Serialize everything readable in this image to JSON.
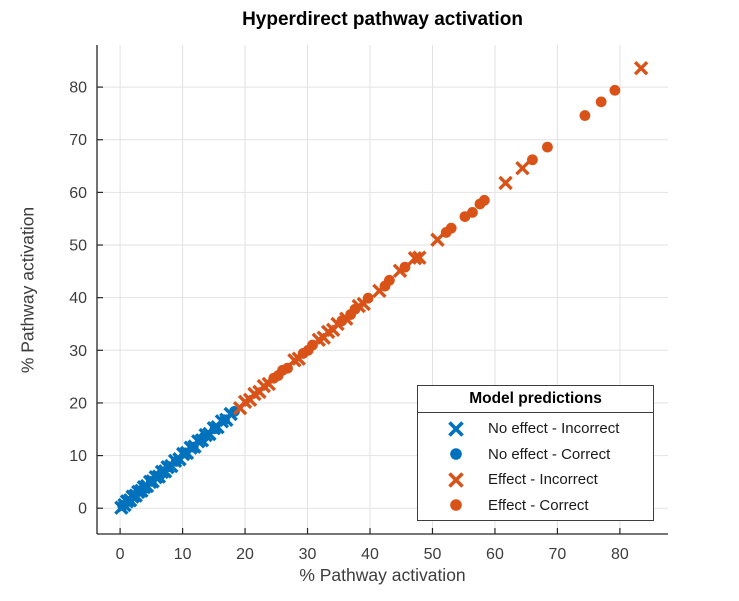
{
  "chart_data": {
    "type": "scatter",
    "title": "Hyperdirect pathway activation",
    "xlabel": "% Pathway activation",
    "ylabel": "% Pathway activation",
    "xlim": [
      -3.7,
      87.7
    ],
    "ylim": [
      -4.9,
      88.0
    ],
    "xticks": [
      0,
      10,
      20,
      30,
      40,
      50,
      60,
      70,
      80
    ],
    "yticks": [
      0,
      10,
      20,
      30,
      40,
      50,
      60,
      70,
      80
    ],
    "grid": true,
    "colors": {
      "no_effect": "#0072BD",
      "effect": "#D95319",
      "grid": "#E2E2E2",
      "axis": "#262626",
      "tick_label": "#3D3D3D"
    },
    "series": [
      {
        "name": "No effect - Incorrect",
        "marker": "x",
        "color": "#0072BD",
        "points": [
          [
            0.2,
            0.1
          ],
          [
            0.7,
            0.6
          ],
          [
            1.1,
            1.3
          ],
          [
            1.6,
            1.5
          ],
          [
            2.0,
            2.2
          ],
          [
            2.5,
            2.4
          ],
          [
            2.9,
            3.1
          ],
          [
            3.4,
            3.3
          ],
          [
            3.8,
            4.0
          ],
          [
            4.3,
            4.2
          ],
          [
            4.8,
            5.0
          ],
          [
            5.2,
            5.1
          ],
          [
            5.7,
            5.9
          ],
          [
            6.2,
            6.0
          ],
          [
            6.7,
            6.9
          ],
          [
            7.2,
            7.0
          ],
          [
            7.6,
            7.8
          ],
          [
            8.2,
            8.0
          ],
          [
            8.8,
            9.0
          ],
          [
            9.5,
            9.3
          ],
          [
            10.1,
            10.3
          ],
          [
            10.7,
            10.5
          ],
          [
            11.3,
            11.5
          ],
          [
            11.9,
            11.7
          ],
          [
            12.5,
            12.7
          ],
          [
            13.1,
            12.9
          ],
          [
            13.7,
            13.9
          ],
          [
            14.3,
            14.1
          ],
          [
            15.0,
            15.2
          ],
          [
            15.6,
            15.4
          ],
          [
            16.3,
            16.5
          ],
          [
            17.0,
            16.8
          ],
          [
            17.7,
            17.9
          ]
        ]
      },
      {
        "name": "No effect - Correct",
        "marker": "o",
        "color": "#0072BD",
        "points": [
          [
            0.4,
            0.5
          ],
          [
            1.4,
            1.3
          ],
          [
            2.3,
            2.4
          ],
          [
            3.6,
            3.5
          ],
          [
            5.0,
            5.1
          ],
          [
            6.4,
            6.3
          ],
          [
            7.8,
            7.9
          ],
          [
            9.0,
            8.9
          ],
          [
            10.4,
            10.5
          ],
          [
            11.7,
            11.6
          ],
          [
            13.4,
            13.5
          ],
          [
            15.2,
            15.1
          ],
          [
            16.7,
            16.8
          ],
          [
            18.3,
            18.4
          ]
        ]
      },
      {
        "name": "Effect - Incorrect",
        "marker": "x",
        "color": "#D95319",
        "points": [
          [
            19.2,
            19.0
          ],
          [
            20.0,
            20.2
          ],
          [
            20.8,
            20.6
          ],
          [
            21.5,
            21.7
          ],
          [
            22.3,
            22.1
          ],
          [
            23.0,
            23.2
          ],
          [
            23.8,
            23.6
          ],
          [
            27.9,
            28.1
          ],
          [
            28.6,
            28.4
          ],
          [
            31.8,
            32.0
          ],
          [
            32.6,
            32.4
          ],
          [
            33.3,
            33.5
          ],
          [
            34.1,
            33.9
          ],
          [
            34.8,
            35.0
          ],
          [
            36.2,
            36.0
          ],
          [
            38.2,
            38.4
          ],
          [
            39.0,
            38.8
          ],
          [
            41.5,
            41.3
          ],
          [
            44.8,
            45.1
          ],
          [
            47.2,
            47.5
          ],
          [
            47.9,
            47.6
          ],
          [
            50.8,
            51.0
          ],
          [
            61.7,
            61.8
          ],
          [
            64.4,
            64.6
          ],
          [
            83.4,
            83.6
          ]
        ]
      },
      {
        "name": "Effect - Correct",
        "marker": "o",
        "color": "#D95319",
        "points": [
          [
            24.6,
            24.7
          ],
          [
            25.3,
            25.2
          ],
          [
            26.0,
            26.2
          ],
          [
            26.8,
            26.6
          ],
          [
            29.3,
            29.4
          ],
          [
            30.1,
            30.0
          ],
          [
            30.8,
            31.0
          ],
          [
            35.5,
            35.6
          ],
          [
            36.9,
            36.8
          ],
          [
            37.6,
            37.8
          ],
          [
            39.7,
            39.9
          ],
          [
            42.4,
            42.2
          ],
          [
            43.1,
            43.3
          ],
          [
            45.6,
            45.8
          ],
          [
            52.2,
            52.4
          ],
          [
            53.0,
            53.2
          ],
          [
            55.2,
            55.4
          ],
          [
            56.4,
            56.2
          ],
          [
            57.6,
            57.8
          ],
          [
            58.3,
            58.5
          ],
          [
            66.0,
            66.2
          ],
          [
            68.4,
            68.6
          ],
          [
            74.4,
            74.6
          ],
          [
            77.0,
            77.2
          ],
          [
            79.2,
            79.4
          ]
        ]
      }
    ],
    "legend": {
      "title": "Model predictions",
      "position": "inside lower right",
      "entries": [
        {
          "label": "No effect - Incorrect",
          "marker": "x",
          "color": "#0072BD"
        },
        {
          "label": "No effect - Correct",
          "marker": "o",
          "color": "#0072BD"
        },
        {
          "label": "Effect - Incorrect",
          "marker": "x",
          "color": "#D95319"
        },
        {
          "label": "Effect - Correct",
          "marker": "o",
          "color": "#D95319"
        }
      ]
    }
  }
}
